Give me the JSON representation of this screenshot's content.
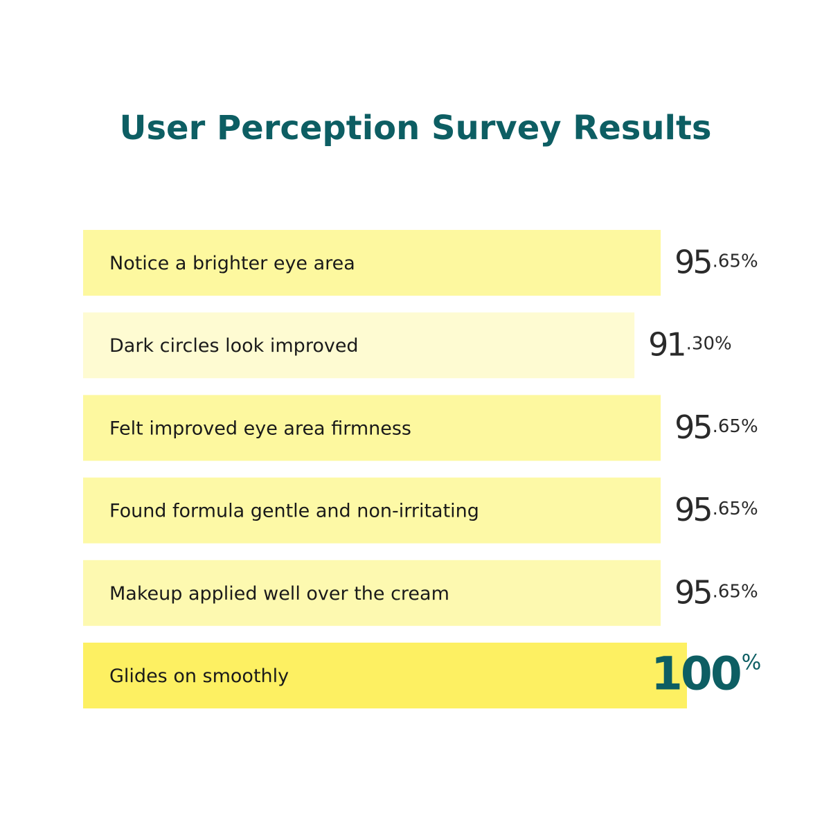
{
  "chart_data": {
    "type": "bar",
    "orientation": "horizontal",
    "title": "User Perception Survey Results",
    "categories": [
      "Notice a brighter eye area",
      "Dark circles look improved",
      "Felt improved eye area firmness",
      "Found formula gentle and non-irritating",
      "Makeup applied well over the cream",
      "Glides on smoothly"
    ],
    "values": [
      95.65,
      91.3,
      95.65,
      95.65,
      95.65,
      100
    ],
    "value_labels": [
      "95.65%",
      "91.30%",
      "95.65%",
      "95.65%",
      "95.65%",
      "100%"
    ],
    "colors": [
      "#fdf89f",
      "#fefbd2",
      "#fdf89f",
      "#fdf9a6",
      "#fdf9b0",
      "#fdf062"
    ],
    "title_color": "#0d5e63",
    "highlight_color": "#0d5e63"
  }
}
